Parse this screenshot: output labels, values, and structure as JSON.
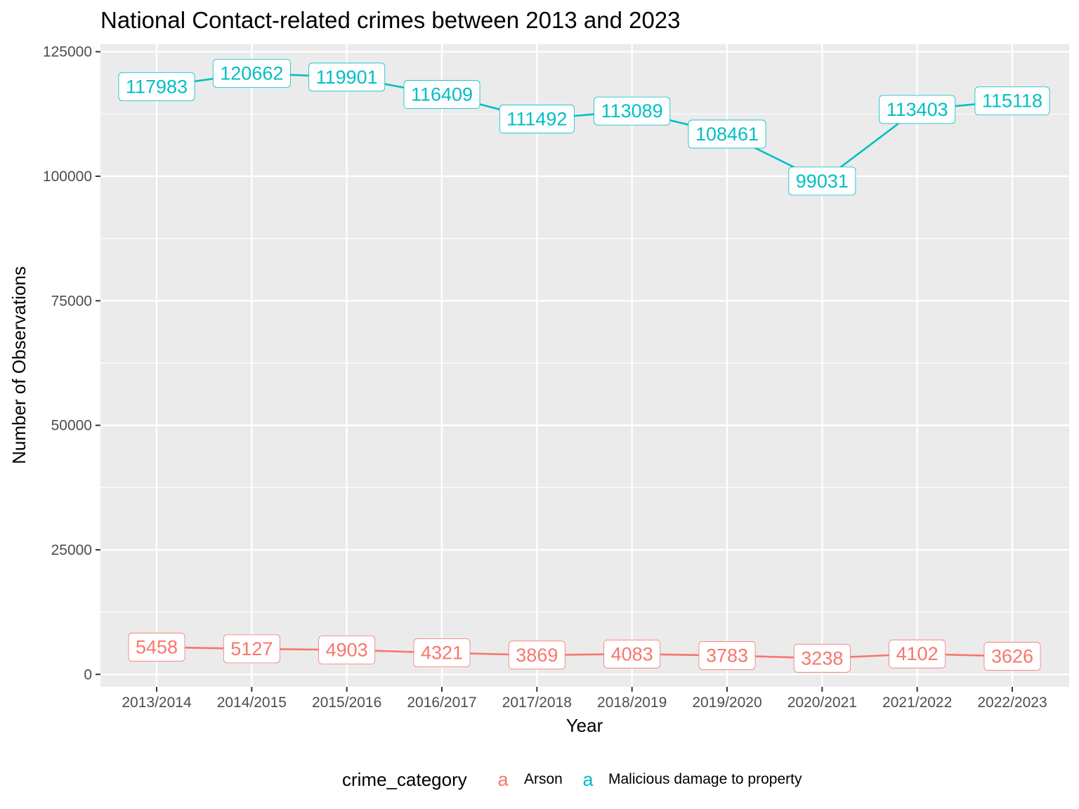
{
  "chart_data": {
    "type": "line",
    "title": "National Contact-related crimes between 2013 and 2023",
    "xlabel": "Year",
    "ylabel": "Number of Observations",
    "categories": [
      "2013/2014",
      "2014/2015",
      "2015/2016",
      "2016/2017",
      "2017/2018",
      "2018/2019",
      "2019/2020",
      "2020/2021",
      "2021/2022",
      "2022/2023"
    ],
    "ylim": [
      -2500,
      126500
    ],
    "yticks": [
      0,
      25000,
      50000,
      75000,
      100000,
      125000
    ],
    "grid": true,
    "legend": {
      "title": "crime_category",
      "key_glyph": "a",
      "position": "bottom"
    },
    "series": [
      {
        "name": "Arson",
        "color": "#F8766D",
        "values": [
          5458,
          5127,
          4903,
          4321,
          3869,
          4083,
          3783,
          3238,
          4102,
          3626
        ]
      },
      {
        "name": "Malicious damage to property",
        "color": "#00BFC4",
        "values": [
          117983,
          120662,
          119901,
          116409,
          111492,
          113089,
          108461,
          99031,
          113403,
          115118
        ]
      }
    ]
  }
}
